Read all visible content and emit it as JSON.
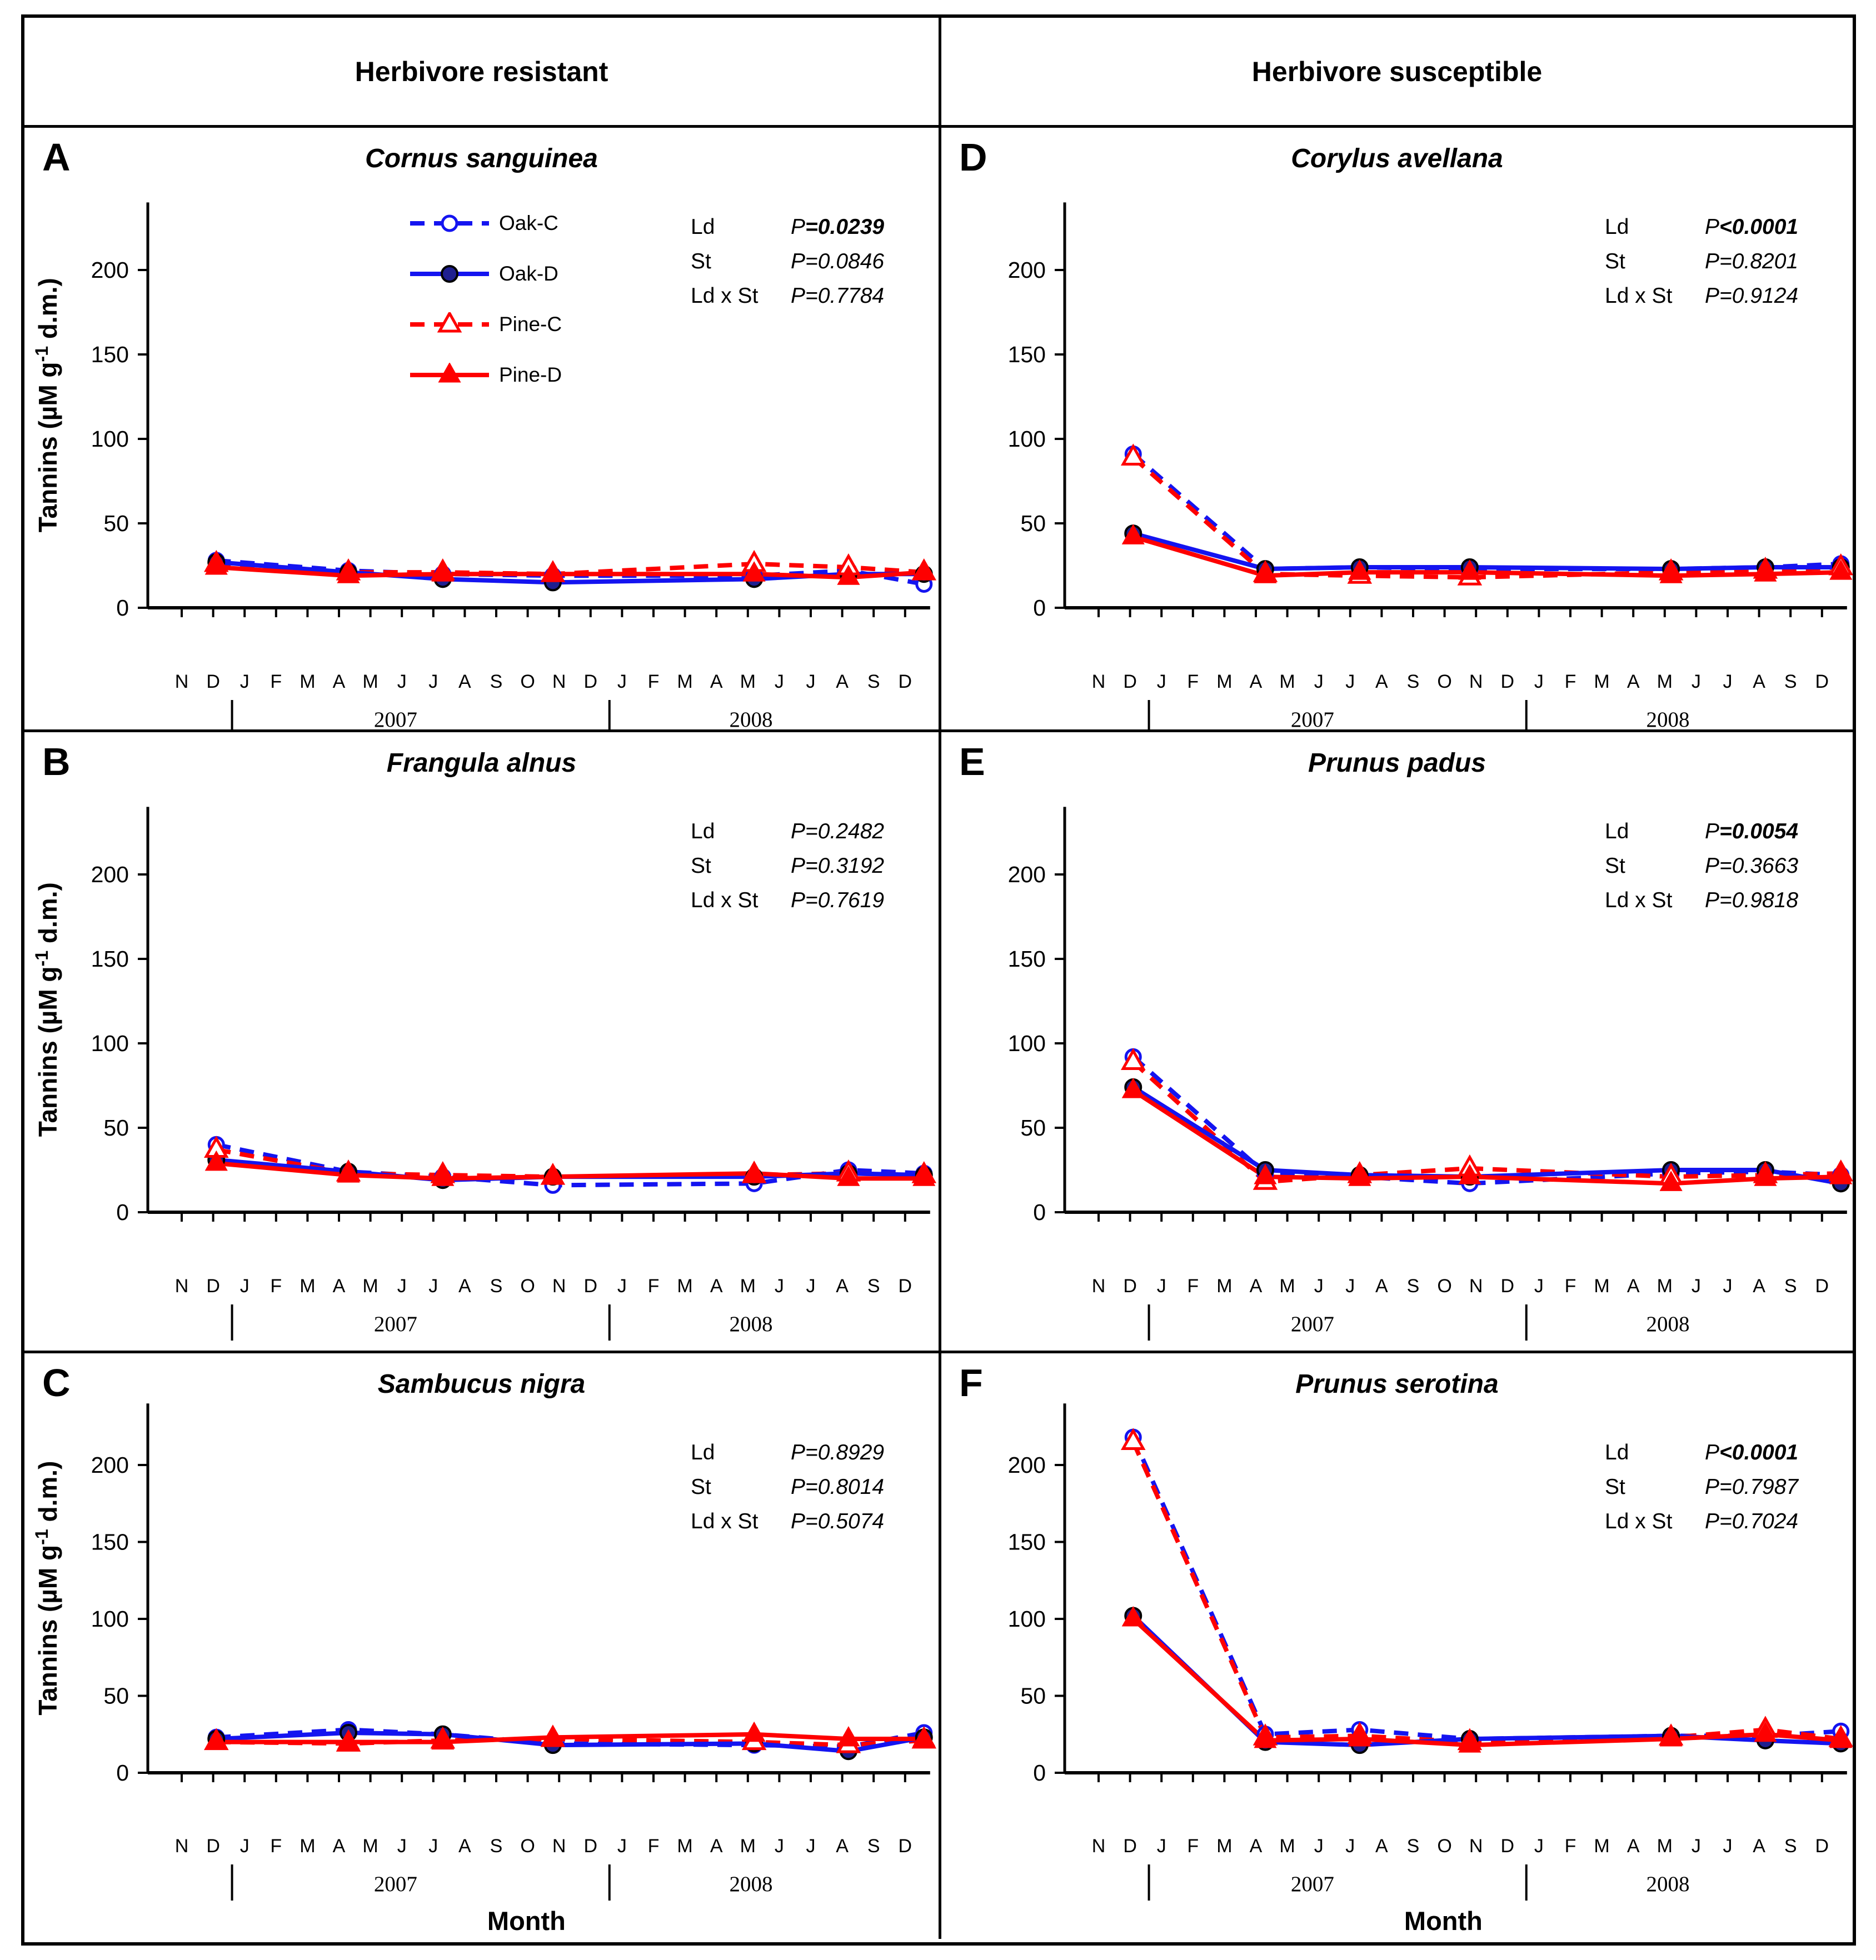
{
  "header": {
    "left": "Herbivore resistant",
    "right": "Herbivore susceptible"
  },
  "axes": {
    "y_title_pre": "Tannins (µM g",
    "y_title_sup": "-1",
    "y_title_post": " d.m.)",
    "y_ticks": [
      "0",
      "50",
      "100",
      "150",
      "200"
    ],
    "ylim": [
      0,
      240
    ],
    "x_title": "Month",
    "months": [
      "N",
      "D",
      "J",
      "F",
      "M",
      "A",
      "M",
      "J",
      "J",
      "A",
      "S",
      "O",
      "N",
      "D",
      "J",
      "F",
      "M",
      "A",
      "M",
      "J",
      "J",
      "A",
      "S",
      "D"
    ],
    "years": [
      {
        "label": "2007",
        "text_index": 6.8,
        "bar_index": 1.6
      },
      {
        "label": "2008",
        "text_index": 18.1,
        "bar_index": 13.6
      }
    ],
    "sample_month_indices": [
      1.1,
      5.3,
      8.3,
      11.8,
      18.2,
      21.2,
      23.6
    ],
    "grid": "off",
    "legend_position": "inside top-left of panel A"
  },
  "series_styles": [
    {
      "key": "oak_c",
      "label": "Oak-C",
      "color": "#1414f0",
      "dashed": true,
      "marker": "circle",
      "filled": false,
      "fill": "#ffffff"
    },
    {
      "key": "oak_d",
      "label": "Oak-D",
      "color": "#1414f0",
      "dashed": false,
      "marker": "circle",
      "filled": true,
      "fill": "#1f1f90"
    },
    {
      "key": "pine_c",
      "label": "Pine-C",
      "color": "#fe0000",
      "dashed": true,
      "marker": "triangle",
      "filled": false,
      "fill": "#ffffff"
    },
    {
      "key": "pine_d",
      "label": "Pine-D",
      "color": "#fe0000",
      "dashed": false,
      "marker": "triangle",
      "filled": true,
      "fill": "#fe0000"
    }
  ],
  "chart_data": [
    {
      "type": "line",
      "panel": "A",
      "title": "Cornus sanguinea",
      "column": "Herbivore resistant",
      "show_y_axis_title": true,
      "show_x_axis_title": false,
      "show_legend": true,
      "categories": [
        "D 2006",
        "A 2007",
        "J 2007",
        "N 2007",
        "M 2008",
        "A 2008",
        "D 2008"
      ],
      "series": [
        {
          "name": "Oak-C",
          "values": [
            28,
            22,
            20,
            19,
            19,
            22,
            14
          ]
        },
        {
          "name": "Oak-D",
          "values": [
            27,
            21,
            17,
            15,
            17,
            20,
            20
          ]
        },
        {
          "name": "Pine-C",
          "values": [
            26,
            21,
            21,
            20,
            26,
            24,
            21
          ]
        },
        {
          "name": "Pine-D",
          "values": [
            24,
            19,
            20,
            20,
            20,
            18,
            21
          ]
        }
      ],
      "stats": [
        {
          "factor": "Ld",
          "p": "P=0.0239",
          "significant": true
        },
        {
          "factor": "St",
          "p": "P=0.0846",
          "significant": false
        },
        {
          "factor": "Ld x St",
          "p": "P=0.7784",
          "significant": false
        }
      ]
    },
    {
      "type": "line",
      "panel": "B",
      "title": "Frangula alnus",
      "column": "Herbivore resistant",
      "show_y_axis_title": true,
      "show_x_axis_title": false,
      "show_legend": false,
      "categories": [
        "D 2006",
        "A 2007",
        "J 2007",
        "N 2007",
        "M 2008",
        "A 2008",
        "D 2008"
      ],
      "series": [
        {
          "name": "Oak-C",
          "values": [
            40,
            24,
            21,
            16,
            17,
            25,
            23
          ]
        },
        {
          "name": "Oak-D",
          "values": [
            31,
            24,
            19,
            21,
            21,
            23,
            22
          ]
        },
        {
          "name": "Pine-C",
          "values": [
            37,
            23,
            22,
            21,
            22,
            23,
            22
          ]
        },
        {
          "name": "Pine-D",
          "values": [
            29,
            22,
            20,
            21,
            23,
            20,
            20
          ]
        }
      ],
      "stats": [
        {
          "factor": "Ld",
          "p": "P=0.2482",
          "significant": false
        },
        {
          "factor": "St",
          "p": "P=0.3192",
          "significant": false
        },
        {
          "factor": "Ld x St",
          "p": "P=0.7619",
          "significant": false
        }
      ]
    },
    {
      "type": "line",
      "panel": "C",
      "title": "Sambucus nigra",
      "column": "Herbivore resistant",
      "show_y_axis_title": true,
      "show_x_axis_title": true,
      "show_legend": false,
      "categories": [
        "D 2006",
        "A 2007",
        "J 2007",
        "N 2007",
        "M 2008",
        "A 2008",
        "D 2008"
      ],
      "series": [
        {
          "name": "Oak-C",
          "values": [
            23,
            28,
            25,
            19,
            18,
            17,
            26
          ]
        },
        {
          "name": "Oak-D",
          "values": [
            22,
            26,
            25,
            18,
            19,
            14,
            23
          ]
        },
        {
          "name": "Pine-C",
          "values": [
            20,
            19,
            21,
            22,
            20,
            18,
            21
          ]
        },
        {
          "name": "Pine-D",
          "values": [
            20,
            20,
            20,
            23,
            25,
            22,
            22
          ]
        }
      ],
      "stats": [
        {
          "factor": "Ld",
          "p": "P=0.8929",
          "significant": false
        },
        {
          "factor": "St",
          "p": "P=0.8014",
          "significant": false
        },
        {
          "factor": "Ld x St",
          "p": "P=0.5074",
          "significant": false
        }
      ]
    },
    {
      "type": "line",
      "panel": "D",
      "title": "Corylus avellana",
      "column": "Herbivore susceptible",
      "show_y_axis_title": false,
      "show_x_axis_title": false,
      "show_legend": false,
      "categories": [
        "D 2006",
        "A 2007",
        "J 2007",
        "N 2007",
        "M 2008",
        "A 2008",
        "D 2008"
      ],
      "series": [
        {
          "name": "Oak-C",
          "values": [
            91,
            23,
            24,
            23,
            23,
            24,
            26
          ]
        },
        {
          "name": "Oak-D",
          "values": [
            44,
            23,
            24,
            24,
            23,
            24,
            24
          ]
        },
        {
          "name": "Pine-C",
          "values": [
            89,
            20,
            19,
            18,
            21,
            22,
            24
          ]
        },
        {
          "name": "Pine-D",
          "values": [
            42,
            19,
            21,
            21,
            19,
            20,
            21
          ]
        }
      ],
      "stats": [
        {
          "factor": "Ld",
          "p": "P<0.0001",
          "significant": true
        },
        {
          "factor": "St",
          "p": "P=0.8201",
          "significant": false
        },
        {
          "factor": "Ld x St",
          "p": "P=0.9124",
          "significant": false
        }
      ]
    },
    {
      "type": "line",
      "panel": "E",
      "title": "Prunus padus",
      "column": "Herbivore susceptible",
      "show_y_axis_title": false,
      "show_x_axis_title": false,
      "show_legend": false,
      "categories": [
        "D 2006",
        "A 2007",
        "J 2007",
        "N 2007",
        "M 2008",
        "A 2008",
        "D 2008"
      ],
      "series": [
        {
          "name": "Oak-C",
          "values": [
            92,
            23,
            21,
            17,
            23,
            24,
            22
          ]
        },
        {
          "name": "Oak-D",
          "values": [
            74,
            25,
            22,
            21,
            25,
            25,
            17
          ]
        },
        {
          "name": "Pine-C",
          "values": [
            89,
            18,
            22,
            26,
            21,
            22,
            23
          ]
        },
        {
          "name": "Pine-D",
          "values": [
            72,
            21,
            20,
            21,
            17,
            20,
            21
          ]
        }
      ],
      "stats": [
        {
          "factor": "Ld",
          "p": "P=0.0054",
          "significant": true
        },
        {
          "factor": "St",
          "p": "P=0.3663",
          "significant": false
        },
        {
          "factor": "Ld x St",
          "p": "P=0.9818",
          "significant": false
        }
      ]
    },
    {
      "type": "line",
      "panel": "F",
      "title": "Prunus serotina",
      "column": "Herbivore susceptible",
      "show_y_axis_title": false,
      "show_x_axis_title": true,
      "show_legend": false,
      "categories": [
        "D 2006",
        "A 2007",
        "J 2007",
        "N 2007",
        "M 2008",
        "A 2008",
        "D 2008"
      ],
      "series": [
        {
          "name": "Oak-C",
          "values": [
            218,
            25,
            28,
            22,
            24,
            24,
            27
          ]
        },
        {
          "name": "Oak-D",
          "values": [
            102,
            20,
            18,
            22,
            24,
            21,
            19
          ]
        },
        {
          "name": "Pine-C",
          "values": [
            215,
            23,
            24,
            20,
            23,
            28,
            22
          ]
        },
        {
          "name": "Pine-D",
          "values": [
            100,
            21,
            22,
            18,
            22,
            25,
            21
          ]
        }
      ],
      "stats": [
        {
          "factor": "Ld",
          "p": "P<0.0001",
          "significant": true
        },
        {
          "factor": "St",
          "p": "P=0.7987",
          "significant": false
        },
        {
          "factor": "Ld x St",
          "p": "P=0.7024",
          "significant": false
        }
      ]
    }
  ]
}
